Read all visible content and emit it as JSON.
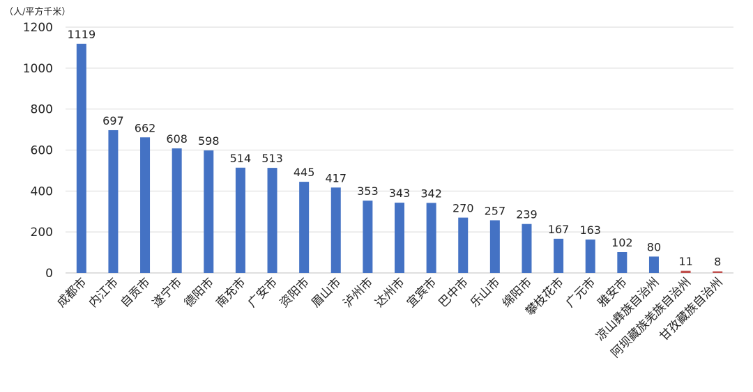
{
  "chart_data": {
    "type": "bar",
    "unit_label": "（人/平方千米）",
    "categories": [
      "成都市",
      "内江市",
      "自贡市",
      "遂宁市",
      "德阳市",
      "南充市",
      "广安市",
      "资阳市",
      "眉山市",
      "泸州市",
      "达州市",
      "宜宾市",
      "巴中市",
      "乐山市",
      "绵阳市",
      "攀枝花市",
      "广元市",
      "雅安市",
      "凉山彝族自治州",
      "阿坝藏族羌族自治州",
      "甘孜藏族自治州"
    ],
    "values": [
      1119,
      697,
      662,
      608,
      598,
      514,
      513,
      445,
      417,
      353,
      343,
      342,
      270,
      257,
      239,
      167,
      163,
      102,
      80,
      11,
      8
    ],
    "ylim": [
      0,
      1200
    ],
    "yticks": [
      0,
      200,
      400,
      600,
      800,
      1000,
      1200
    ],
    "grid": true,
    "colors": {
      "bar": "#4472C4",
      "bar_highlight": "#C0504D",
      "grid": "#D9D9D9",
      "axis": "#BFBFBF"
    },
    "highlight_indices": [
      19,
      20
    ]
  }
}
